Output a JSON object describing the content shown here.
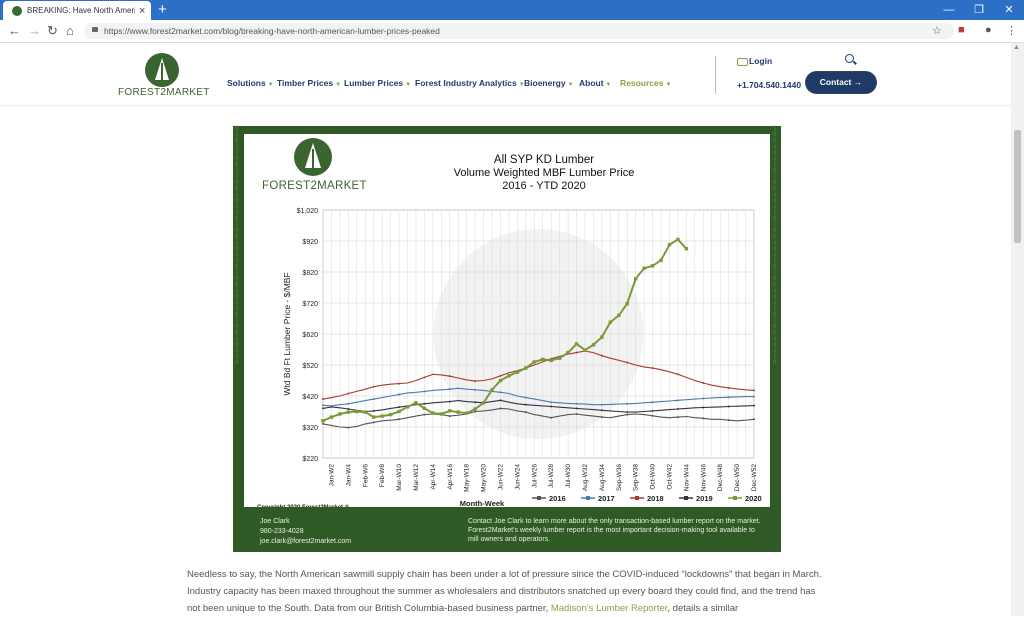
{
  "browser": {
    "tab_title": "BREAKING: Have North American",
    "url": "https://www.forest2market.com/blog/breaking-have-north-american-lumber-prices-peaked"
  },
  "site": {
    "logo_text": "FOREST2MARKET",
    "nav": [
      "Solutions",
      "Timber Prices",
      "Lumber Prices",
      "Forest Industry Analytics",
      "Bioenergy",
      "About",
      "Resources"
    ],
    "login": "Login",
    "phone": "+1.704.540.1440",
    "contact": "Contact →"
  },
  "chart": {
    "logo_text": "FOREST2MARKET",
    "copyright": "Copyright 2020 Forest2Market ®",
    "footer": {
      "name": "Joe Clark",
      "phone": "980-233-4028",
      "email": "joe.clark@forest2market.com",
      "note1": "Contact Joe Clark to learn more about the only transaction-based lumber report on the market.",
      "note2": "Forest2Market's weekly lumber report is the most important decision-making tool available to",
      "note3": "mill owners and operators."
    }
  },
  "chart_data": {
    "type": "line",
    "title": "All SYP KD Lumber",
    "subtitle": "Volume Weighted MBF Lumber Price",
    "subtitle2": "2016 - YTD 2020",
    "xlabel": "Month-Week",
    "ylabel": "Wtd Bd Ft Lumber Price - $/MBF",
    "ylim": [
      220,
      1020
    ],
    "yticks": [
      "$220",
      "$320",
      "$420",
      "$520",
      "$620",
      "$720",
      "$820",
      "$920",
      "$1,020"
    ],
    "x_ticks": [
      "Jan-W2",
      "Jan-W4",
      "Feb-W6",
      "Feb-W8",
      "Mar-W10",
      "Mar-W12",
      "Apr-W14",
      "Apr-W16",
      "May-W18",
      "May-W20",
      "Jun-W22",
      "Jun-W24",
      "Jul-W26",
      "Jul-W28",
      "Jul-W30",
      "Aug-W32",
      "Aug-W34",
      "Sep-W36",
      "Sep-W38",
      "Oct-W40",
      "Oct-W42",
      "Nov-W44",
      "Nov-W46",
      "Dec-W48",
      "Dec-W50",
      "Dec-W52"
    ],
    "grid": true,
    "legend_position": "bottom",
    "series": [
      {
        "name": "2016",
        "color": "#555555",
        "marker": "circle",
        "values": [
          330,
          325,
          320,
          318,
          322,
          330,
          335,
          340,
          342,
          345,
          350,
          355,
          360,
          362,
          360,
          355,
          358,
          362,
          370,
          372,
          375,
          380,
          378,
          372,
          368,
          360,
          355,
          350,
          355,
          360,
          362,
          358,
          355,
          352,
          350,
          355,
          360,
          362,
          360,
          356,
          352,
          350,
          352,
          354,
          350,
          348,
          345,
          345,
          342,
          340,
          342,
          345
        ]
      },
      {
        "name": "2017",
        "color": "#4a7bb0",
        "marker": "diamond",
        "values": [
          390,
          388,
          392,
          395,
          400,
          405,
          410,
          415,
          420,
          425,
          430,
          432,
          435,
          438,
          440,
          442,
          445,
          442,
          440,
          438,
          435,
          432,
          428,
          420,
          415,
          410,
          405,
          400,
          398,
          396,
          395,
          394,
          392,
          392,
          393,
          394,
          395,
          396,
          398,
          400,
          402,
          404,
          406,
          408,
          410,
          412,
          414,
          415,
          416,
          417,
          418,
          418
        ]
      },
      {
        "name": "2018",
        "color": "#a83a32",
        "marker": "square",
        "values": [
          410,
          415,
          420,
          428,
          435,
          442,
          450,
          455,
          458,
          460,
          462,
          470,
          480,
          490,
          488,
          484,
          478,
          472,
          468,
          470,
          475,
          485,
          495,
          502,
          510,
          520,
          530,
          540,
          548,
          555,
          560,
          565,
          560,
          550,
          542,
          535,
          528,
          520,
          514,
          510,
          505,
          498,
          490,
          480,
          470,
          462,
          455,
          450,
          446,
          443,
          440,
          438
        ]
      },
      {
        "name": "2019",
        "color": "#333344",
        "marker": "triangle",
        "values": [
          380,
          385,
          382,
          378,
          374,
          370,
          372,
          375,
          380,
          384,
          388,
          392,
          395,
          398,
          400,
          402,
          405,
          402,
          400,
          398,
          402,
          406,
          400,
          395,
          392,
          390,
          388,
          386,
          384,
          382,
          380,
          378,
          376,
          374,
          372,
          370,
          368,
          368,
          370,
          372,
          374,
          376,
          378,
          380,
          382,
          383,
          384,
          385,
          386,
          387,
          388,
          389
        ]
      },
      {
        "name": "2020",
        "color": "#7a9a3a",
        "marker": "square",
        "values": [
          340,
          352,
          362,
          368,
          370,
          368,
          352,
          355,
          360,
          370,
          385,
          398,
          380,
          365,
          362,
          372,
          368,
          365,
          378,
          398,
          440,
          470,
          485,
          497,
          510,
          530,
          538,
          535,
          542,
          560,
          588,
          568,
          585,
          610,
          658,
          680,
          718,
          798,
          832,
          840,
          858,
          908,
          925,
          895
        ]
      }
    ]
  },
  "article": {
    "text_before": "Needless to say, the North American sawmill supply chain has been under a lot of pressure since the COVID-induced “lockdowns” that began in March. Industry capacity has been maxed throughout the summer as wholesalers and distributors snatched up every board they could find, and the trend has not been unique to the South. Data from our British Columbia-based business partner, ",
    "link": "Madison’s Lumber Reporter",
    "text_after": ", details a similar"
  }
}
